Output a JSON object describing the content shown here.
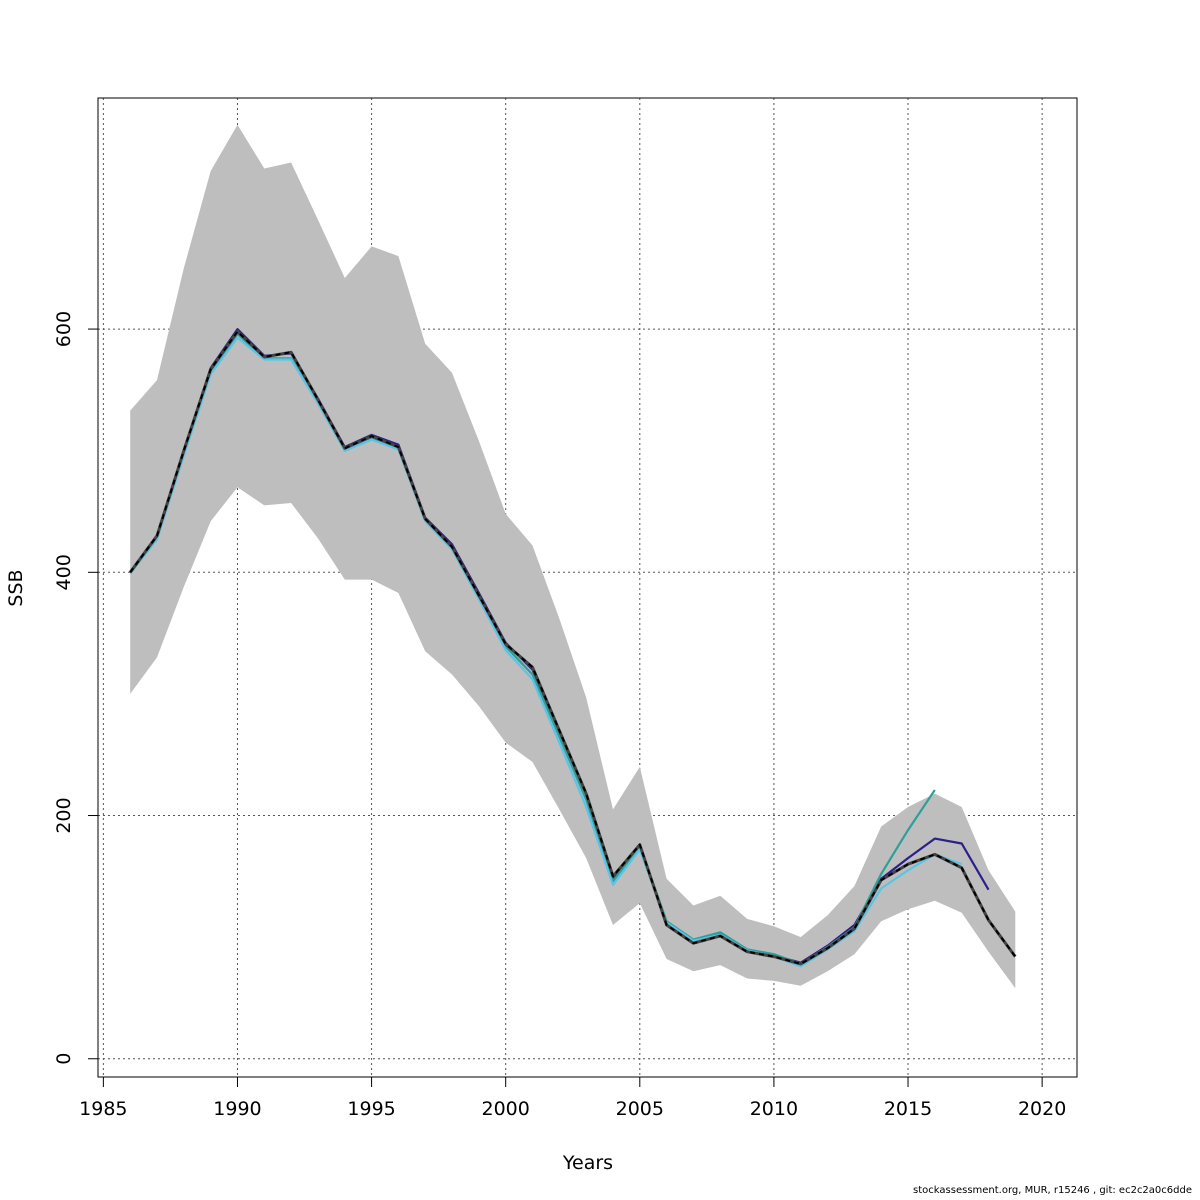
{
  "chart_data": {
    "type": "line",
    "xlabel": "Years",
    "ylabel": "SSB",
    "xlim": [
      1984.8,
      2021.3
    ],
    "ylim": [
      -15,
      790
    ],
    "x_ticks": [
      1985,
      1990,
      1995,
      2000,
      2005,
      2010,
      2015,
      2020
    ],
    "y_ticks": [
      0,
      200,
      400,
      600
    ],
    "grid": true,
    "band": {
      "color": "#bebebe",
      "x": [
        1986,
        1987,
        1988,
        1989,
        1990,
        1991,
        1992,
        1993,
        1994,
        1995,
        1996,
        1997,
        1998,
        1999,
        2000,
        2001,
        2002,
        2003,
        2004,
        2005,
        2006,
        2007,
        2008,
        2009,
        2010,
        2011,
        2012,
        2013,
        2014,
        2015,
        2016,
        2017,
        2018,
        2019
      ],
      "lower": [
        300,
        330,
        388,
        442,
        470,
        455,
        457,
        428,
        394,
        394,
        383,
        335,
        316,
        290,
        260,
        244,
        205,
        165,
        110,
        128,
        82,
        72,
        77,
        66,
        64,
        60,
        72,
        86,
        113,
        123,
        130,
        120,
        88,
        58
      ],
      "upper": [
        533,
        558,
        650,
        730,
        768,
        732,
        737,
        690,
        642,
        668,
        660,
        588,
        564,
        508,
        448,
        422,
        362,
        297,
        205,
        240,
        148,
        126,
        134,
        115,
        109,
        100,
        118,
        142,
        191,
        207,
        218,
        207,
        155,
        121
      ]
    },
    "series": [
      {
        "color": "#2b1f8a",
        "x": [
          1986,
          1987,
          1988,
          1989,
          1990,
          1991,
          1992,
          1993,
          1994,
          1995,
          1996,
          1997,
          1998,
          1999,
          2000,
          2001,
          2002,
          2003,
          2004,
          2005,
          2006,
          2007,
          2008,
          2009,
          2010,
          2011,
          2012,
          2013,
          2014,
          2015,
          2016,
          2017,
          2018
        ],
        "y": [
          400,
          430,
          500,
          568,
          600,
          578,
          580,
          543,
          503,
          513,
          505,
          445,
          423,
          383,
          342,
          320,
          268,
          216,
          148,
          175,
          112,
          97,
          103,
          89,
          85,
          79,
          93,
          110,
          148,
          165,
          181,
          177,
          139
        ]
      },
      {
        "color": "#2f9f98",
        "x": [
          1986,
          1987,
          1988,
          1989,
          1990,
          1991,
          1992,
          1993,
          1994,
          1995,
          1996,
          1997,
          1998,
          1999,
          2000,
          2001,
          2002,
          2003,
          2004,
          2005,
          2006,
          2007,
          2008,
          2009,
          2010,
          2011,
          2012,
          2013,
          2014,
          2015,
          2016
        ],
        "y": [
          399,
          428,
          498,
          565,
          596,
          576,
          576,
          540,
          500,
          510,
          502,
          443,
          420,
          380,
          339,
          316,
          265,
          213,
          146,
          175,
          113,
          98,
          104,
          90,
          86,
          78,
          92,
          108,
          152,
          188,
          221
        ]
      },
      {
        "color": "#5bc4e6",
        "x": [
          1986,
          1987,
          1988,
          1989,
          1990,
          1991,
          1992,
          1993,
          1994,
          1995,
          1996,
          1997,
          1998,
          1999,
          2000,
          2001,
          2002,
          2003,
          2004,
          2005,
          2006,
          2007,
          2008,
          2009,
          2010,
          2011,
          2012,
          2013,
          2014,
          2015,
          2016,
          2017
        ],
        "y": [
          399,
          427,
          496,
          563,
          593,
          575,
          575,
          539,
          500,
          509,
          501,
          442,
          419,
          378,
          336,
          312,
          260,
          207,
          143,
          172,
          112,
          97,
          102,
          89,
          84,
          76,
          90,
          105,
          140,
          155,
          168,
          160
        ]
      },
      {
        "color": "#000000",
        "dashed": true,
        "x": [
          1986,
          1987,
          1988,
          1989,
          1990,
          1991,
          1992,
          1993,
          1994,
          1995,
          1996,
          1997,
          1998,
          1999,
          2000,
          2001,
          2002,
          2003,
          2004,
          2005,
          2006,
          2007,
          2008,
          2009,
          2010,
          2011,
          2012,
          2013,
          2014,
          2015,
          2016,
          2017,
          2018,
          2019
        ],
        "y": [
          400,
          430,
          500,
          567,
          598,
          577,
          581,
          542,
          502,
          512,
          503,
          444,
          421,
          381,
          341,
          322,
          270,
          218,
          150,
          176,
          110,
          95,
          101,
          88,
          84,
          78,
          91,
          107,
          147,
          160,
          168,
          157,
          114,
          84
        ]
      }
    ]
  },
  "footer": "stockassessment.org, MUR, r15246 , git: ec2c2a0c6dde"
}
